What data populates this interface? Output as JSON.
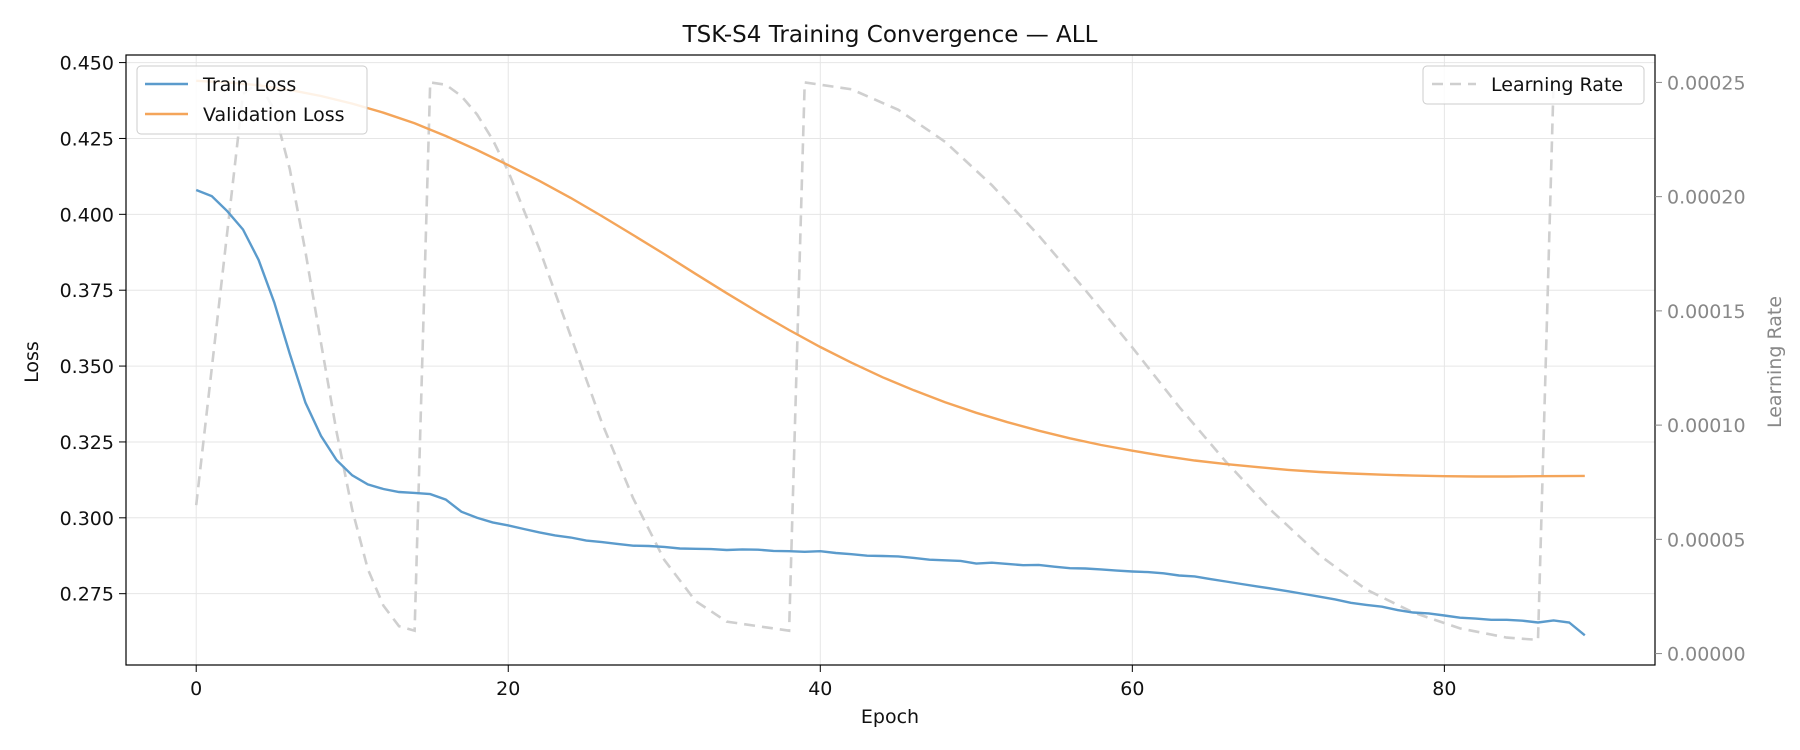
{
  "chart_data": {
    "type": "line",
    "title": "TSK-S4 Training Convergence — ALL",
    "xlabel": "Epoch",
    "ylabel": "Loss",
    "y2label": "Learning Rate",
    "xlim": [
      -4.5,
      93.5
    ],
    "ylim": [
      0.2515,
      0.4525
    ],
    "y2lim": [
      -5e-06,
      0.000262
    ],
    "xticks": [
      0,
      20,
      40,
      60,
      80
    ],
    "yticks": [
      0.275,
      0.3,
      0.325,
      0.35,
      0.375,
      0.4,
      0.425,
      0.45
    ],
    "yticklabels": [
      "0.275",
      "0.300",
      "0.325",
      "0.350",
      "0.375",
      "0.400",
      "0.425",
      "0.450"
    ],
    "y2ticks": [
      0,
      5e-05,
      0.0001,
      0.00015,
      0.0002,
      0.00025
    ],
    "y2ticklabels": [
      "0.00000",
      "0.00005",
      "0.00010",
      "0.00015",
      "0.00020",
      "0.00025"
    ],
    "grid": true,
    "legend_left": {
      "placement": "top-left",
      "entries": [
        "Train Loss",
        "Validation Loss"
      ]
    },
    "legend_right": {
      "placement": "top-right",
      "entries": [
        "Learning Rate"
      ]
    },
    "colors": {
      "train": "#5b9bcc",
      "validation": "#f4a55a",
      "lr": "#cfcfcf"
    },
    "series": [
      {
        "name": "Train Loss",
        "axis": "left",
        "x": [
          0,
          1,
          2,
          3,
          4,
          5,
          6,
          7,
          8,
          9,
          10,
          11,
          12,
          13,
          14,
          15,
          16,
          17,
          18,
          19,
          20,
          21,
          22,
          23,
          24,
          25,
          26,
          27,
          28,
          29,
          30,
          31,
          32,
          33,
          34,
          35,
          36,
          37,
          38,
          39,
          40,
          41,
          42,
          43,
          44,
          45,
          46,
          47,
          48,
          49,
          50,
          51,
          52,
          53,
          54,
          55,
          56,
          57,
          58,
          59,
          60,
          61,
          62,
          63,
          64,
          65,
          66,
          67,
          68,
          69,
          70,
          71,
          72,
          73,
          74,
          75,
          76,
          77,
          78,
          79,
          80,
          81,
          82,
          83,
          84,
          85,
          86,
          87,
          88,
          89
        ],
        "values": [
          0.408,
          0.406,
          0.401,
          0.395,
          0.385,
          0.371,
          0.354,
          0.338,
          0.327,
          0.319,
          0.314,
          0.311,
          0.3095,
          0.3085,
          0.3082,
          0.3078,
          0.306,
          0.302,
          0.3,
          0.2985,
          0.2975,
          0.2963,
          0.2952,
          0.2942,
          0.2935,
          0.2925,
          0.292,
          0.2914,
          0.2908,
          0.2907,
          0.2904,
          0.2899,
          0.2898,
          0.2897,
          0.2894,
          0.2896,
          0.2895,
          0.2891,
          0.289,
          0.2888,
          0.289,
          0.2884,
          0.288,
          0.2875,
          0.2874,
          0.2873,
          0.2868,
          0.2862,
          0.286,
          0.2858,
          0.2849,
          0.2852,
          0.2848,
          0.2844,
          0.2845,
          0.2839,
          0.2834,
          0.2833,
          0.283,
          0.2826,
          0.2823,
          0.2821,
          0.2817,
          0.281,
          0.2807,
          0.2798,
          0.279,
          0.2782,
          0.2774,
          0.2766,
          0.2758,
          0.2749,
          0.274,
          0.2731,
          0.272,
          0.2713,
          0.2707,
          0.2696,
          0.2688,
          0.2685,
          0.2678,
          0.2671,
          0.2668,
          0.2664,
          0.2664,
          0.2661,
          0.2655,
          0.2662,
          0.2655,
          0.2613
        ]
      },
      {
        "name": "Validation Loss",
        "axis": "left",
        "x": [
          0,
          2,
          4,
          6,
          8,
          10,
          12,
          14,
          16,
          18,
          20,
          22,
          24,
          26,
          28,
          30,
          32,
          34,
          36,
          38,
          40,
          42,
          44,
          46,
          48,
          50,
          52,
          54,
          56,
          58,
          60,
          62,
          64,
          66,
          68,
          70,
          72,
          74,
          76,
          78,
          80,
          82,
          84,
          86,
          89
        ],
        "values": [
          0.444,
          0.4435,
          0.4425,
          0.441,
          0.439,
          0.4365,
          0.4335,
          0.43,
          0.4258,
          0.4212,
          0.4162,
          0.411,
          0.4054,
          0.3994,
          0.3932,
          0.3869,
          0.3804,
          0.374,
          0.3678,
          0.3619,
          0.3563,
          0.3511,
          0.3463,
          0.342,
          0.3381,
          0.3346,
          0.3315,
          0.3287,
          0.3262,
          0.324,
          0.3221,
          0.3204,
          0.3189,
          0.3177,
          0.3167,
          0.3158,
          0.3151,
          0.3146,
          0.3142,
          0.3139,
          0.3137,
          0.3136,
          0.3136,
          0.3137,
          0.3138
        ]
      },
      {
        "name": "Learning Rate",
        "axis": "right",
        "x": [
          0,
          1,
          2,
          3,
          4,
          5,
          6,
          7,
          8,
          9,
          10,
          11,
          12,
          13,
          14,
          15,
          16,
          17,
          18,
          19,
          20,
          22,
          24,
          26,
          28,
          30,
          32,
          34,
          36,
          37,
          38,
          39,
          42,
          45,
          48,
          51,
          54,
          57,
          60,
          63,
          66,
          69,
          72,
          75,
          78,
          81,
          84,
          86,
          87
        ],
        "values": [
          6.5e-05,
          0.000125,
          0.000185,
          0.000245,
          0.00025,
          0.000238,
          0.000212,
          0.000176,
          0.000136,
          9.7e-05,
          6.3e-05,
          3.7e-05,
          2.1e-05,
          1.2e-05,
          1e-05,
          0.00025,
          0.000249,
          0.000244,
          0.000236,
          0.000225,
          0.000211,
          0.000177,
          0.000139,
          0.000101,
          6.8e-05,
          4.1e-05,
          2.3e-05,
          1.4e-05,
          1.2e-05,
          1.1e-05,
          1e-05,
          0.00025,
          0.000247,
          0.000238,
          0.000224,
          0.000205,
          0.000183,
          0.000159,
          0.000134,
          0.000108,
          8.4e-05,
          6.2e-05,
          4.3e-05,
          2.8e-05,
          1.8e-05,
          1.1e-05,
          7e-06,
          6e-06,
          0.00025
        ]
      }
    ]
  }
}
